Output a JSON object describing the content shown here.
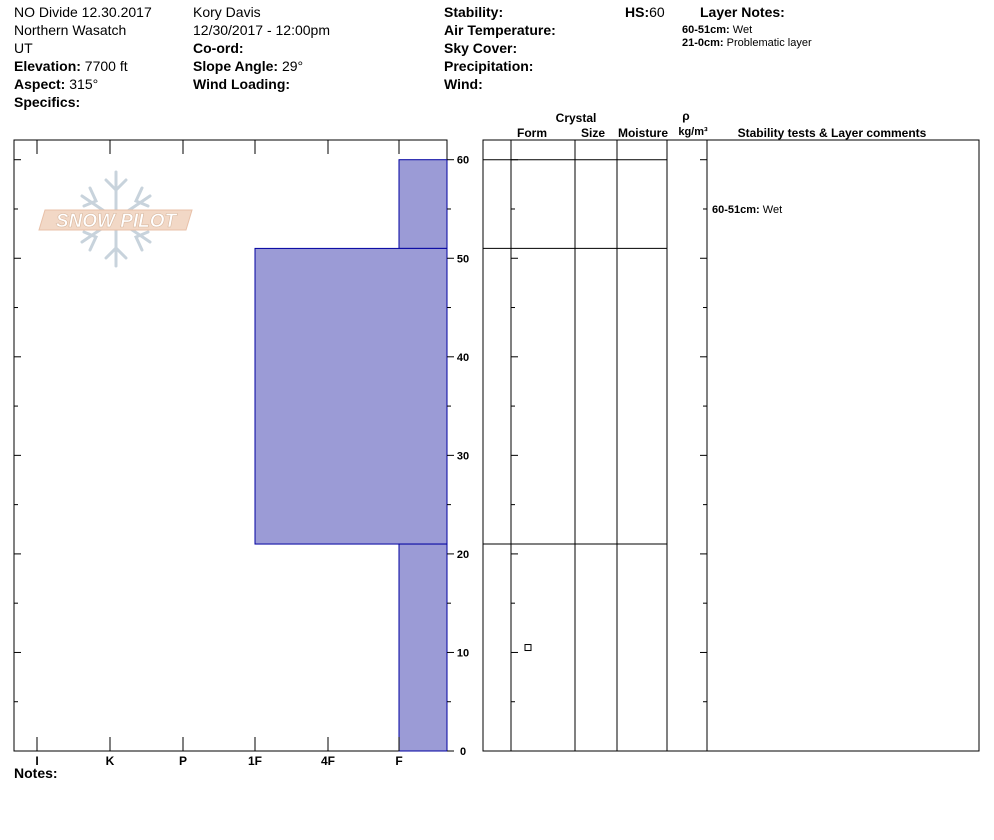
{
  "header": {
    "site_title": "NO Divide 12.30.2017",
    "range": "Northern Wasatch",
    "state": "UT",
    "elevation_label": "Elevation:",
    "elevation_value": "7700 ft",
    "aspect_label": "Aspect:",
    "aspect_value": "315°",
    "specifics_label": "Specifics:",
    "observer": "Kory Davis",
    "datetime": "12/30/2017 - 12:00pm",
    "coord_label": "Co-ord:",
    "slope_label": "Slope Angle:",
    "slope_value": "29°",
    "wind_loading_label": "Wind Loading:",
    "stability_label": "Stability:",
    "air_temp_label": "Air Temperature:",
    "sky_cover_label": "Sky Cover:",
    "precip_label": "Precipitation:",
    "wind_label": "Wind:",
    "hs_label": "HS:",
    "hs_value": "60",
    "layer_notes_label": "Layer Notes:",
    "layer_notes": [
      {
        "range": "60-51cm:",
        "text": "Wet"
      },
      {
        "range": "21-0cm:",
        "text": "Problematic layer"
      }
    ]
  },
  "notes_label": "Notes:",
  "logo_text": "SNOW PILOT",
  "columns": {
    "crystal": "Crystal",
    "form": "Form",
    "size": "Size",
    "moisture": "Moisture",
    "rho": "ρ",
    "density_unit": "kg/m³",
    "comments": "Stability tests & Layer comments"
  },
  "colors": {
    "hardness_fill": "#9b9bd6",
    "hardness_stroke": "#0000a0"
  },
  "chart_data": {
    "type": "bar",
    "title": "",
    "orientation": "horizontal",
    "y_axis": {
      "label": "",
      "range": [
        0,
        60
      ],
      "ticks": [
        0,
        10,
        20,
        30,
        40,
        50,
        60
      ],
      "unit": "cm"
    },
    "x_axis": {
      "label": "",
      "categories": [
        "I",
        "K",
        "P",
        "1F",
        "4F",
        "F"
      ],
      "direction": "decreasing hardness left to right"
    },
    "layers": [
      {
        "top": 60,
        "bottom": 51,
        "hardness": "F"
      },
      {
        "top": 51,
        "bottom": 21,
        "hardness": "1F"
      },
      {
        "top": 21,
        "bottom": 0,
        "hardness": "F"
      }
    ],
    "layer_boundaries": [
      60,
      51,
      21
    ],
    "grain_symbol": {
      "depth": 10.5,
      "column": "form",
      "symbol": "square"
    },
    "layer_comments": [
      {
        "depth": 55,
        "range": "60-51cm:",
        "text": "Wet"
      }
    ]
  }
}
